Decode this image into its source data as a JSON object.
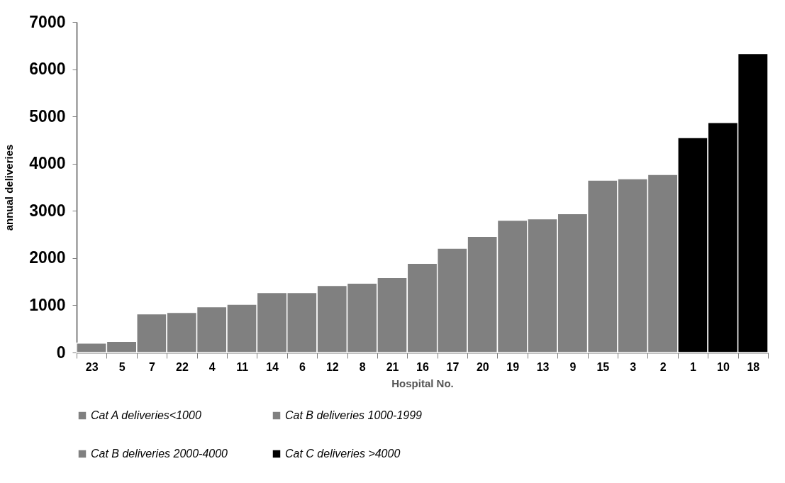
{
  "chart_data": {
    "type": "bar",
    "xlabel": "Hospital No.",
    "ylabel": "annual deliveries",
    "categories": [
      "23",
      "5",
      "7",
      "22",
      "4",
      "11",
      "14",
      "6",
      "12",
      "8",
      "21",
      "16",
      "17",
      "20",
      "19",
      "13",
      "9",
      "15",
      "3",
      "2",
      "1",
      "10",
      "18"
    ],
    "series": [
      {
        "name": "Cat A deliveries<1000",
        "color": "#808080",
        "values": [
          200,
          235,
          820,
          850,
          970,
          null,
          null,
          null,
          null,
          null,
          null,
          null,
          null,
          null,
          null,
          null,
          null,
          null,
          null,
          null,
          null,
          null,
          null
        ]
      },
      {
        "name": "Cat B deliveries 1000-1999",
        "color": "#808080",
        "values": [
          null,
          null,
          null,
          null,
          null,
          1020,
          1270,
          1270,
          1420,
          1470,
          1590,
          1890,
          null,
          null,
          null,
          null,
          null,
          null,
          null,
          null,
          null,
          null,
          null
        ]
      },
      {
        "name": "Cat B deliveries 2000-4000",
        "color": "#808080",
        "values": [
          null,
          null,
          null,
          null,
          null,
          null,
          null,
          null,
          null,
          null,
          null,
          null,
          2210,
          2460,
          2800,
          2830,
          2940,
          3650,
          3680,
          3770,
          null,
          null,
          null
        ]
      },
      {
        "name": "Cat C deliveries >4000",
        "color": "#000000",
        "values": [
          null,
          null,
          null,
          null,
          null,
          null,
          null,
          null,
          null,
          null,
          null,
          null,
          null,
          null,
          null,
          null,
          null,
          null,
          null,
          null,
          4550,
          4870,
          6330
        ]
      }
    ],
    "ylim": [
      0,
      7000
    ],
    "yticks": [
      0,
      1000,
      2000,
      3000,
      4000,
      5000,
      6000,
      7000
    ],
    "grid": false,
    "legend": "bottom"
  }
}
